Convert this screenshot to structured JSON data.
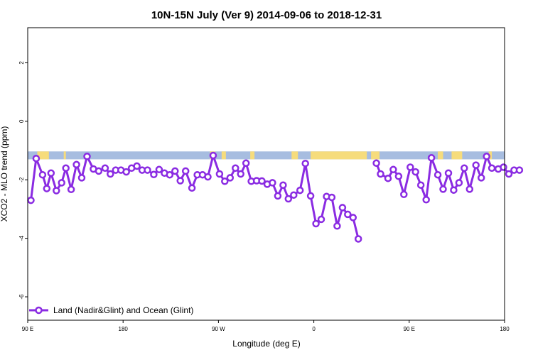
{
  "chart_data": {
    "type": "line",
    "title": "10N-15N July (Ver 9)   2014-09-06 to 2018-12-31",
    "xlabel": "Longitude (deg E)",
    "ylabel": "XCO2 - MLO trend (ppm)",
    "x_ticks": [
      {
        "value": 90,
        "label": "90 E"
      },
      {
        "value": 180,
        "label": "180"
      },
      {
        "value": 270,
        "label": "90 W"
      },
      {
        "value": 360,
        "label": "0"
      },
      {
        "value": 450,
        "label": "90 E"
      },
      {
        "value": 540,
        "label": "180"
      }
    ],
    "y_ticks": [
      {
        "value": 2,
        "label": "2"
      },
      {
        "value": 0,
        "label": "0"
      },
      {
        "value": -2,
        "label": "-2"
      },
      {
        "value": -4,
        "label": "-4"
      },
      {
        "value": -6,
        "label": "-6"
      }
    ],
    "xlim": [
      90,
      540
    ],
    "ylim": [
      -6.8,
      3.2
    ],
    "grid": false,
    "legend_position": "bottom-left",
    "land_band": {
      "y_range": [
        -1.3,
        -1.03
      ],
      "ocean_color": "#a7bde0",
      "land_color": "#f6dc7c",
      "land_segments_x": [
        [
          99,
          110
        ],
        [
          124,
          126
        ],
        [
          262,
          267
        ],
        [
          273,
          277
        ],
        [
          300,
          304
        ],
        [
          339,
          345
        ],
        [
          357,
          410
        ],
        [
          414,
          422
        ],
        [
          477,
          482
        ],
        [
          490,
          500
        ],
        [
          525,
          528
        ]
      ]
    },
    "series": [
      {
        "name": "Land (Nadir&Glint) and Ocean (Glint)",
        "color": "#8a2be2",
        "segments": [
          [
            [
              93,
              -2.7
            ],
            [
              98,
              -1.27
            ],
            [
              104,
              -1.83
            ],
            [
              108,
              -2.3
            ],
            [
              112,
              -1.77
            ],
            [
              117,
              -2.37
            ],
            [
              122,
              -2.1
            ],
            [
              126,
              -1.6
            ],
            [
              131,
              -2.33
            ],
            [
              136,
              -1.48
            ],
            [
              141,
              -1.93
            ],
            [
              146,
              -1.2
            ],
            [
              152,
              -1.63
            ],
            [
              157,
              -1.7
            ],
            [
              163,
              -1.6
            ],
            [
              168,
              -1.8
            ],
            [
              173,
              -1.67
            ],
            [
              178,
              -1.67
            ],
            [
              183,
              -1.73
            ],
            [
              188,
              -1.6
            ],
            [
              193,
              -1.53
            ],
            [
              198,
              -1.67
            ],
            [
              203,
              -1.67
            ],
            [
              209,
              -1.82
            ],
            [
              214,
              -1.65
            ],
            [
              219,
              -1.77
            ],
            [
              224,
              -1.83
            ],
            [
              229,
              -1.7
            ],
            [
              234,
              -2.03
            ],
            [
              239,
              -1.7
            ],
            [
              245,
              -2.28
            ],
            [
              250,
              -1.83
            ],
            [
              255,
              -1.83
            ],
            [
              260,
              -1.9
            ],
            [
              265,
              -1.17
            ],
            [
              271,
              -1.8
            ],
            [
              276,
              -2.05
            ],
            [
              281,
              -1.93
            ],
            [
              286,
              -1.6
            ],
            [
              291,
              -1.8
            ],
            [
              296,
              -1.43
            ],
            [
              301,
              -2.05
            ],
            [
              306,
              -2.03
            ],
            [
              311,
              -2.04
            ],
            [
              316,
              -2.15
            ],
            [
              321,
              -2.1
            ],
            [
              326,
              -2.55
            ],
            [
              331,
              -2.18
            ],
            [
              336,
              -2.65
            ],
            [
              341,
              -2.52
            ],
            [
              347,
              -2.36
            ],
            [
              352,
              -1.44
            ],
            [
              357,
              -2.55
            ],
            [
              362,
              -3.5
            ],
            [
              367,
              -3.35
            ],
            [
              372,
              -2.57
            ],
            [
              377,
              -2.6
            ],
            [
              382,
              -3.58
            ],
            [
              387,
              -2.95
            ],
            [
              392,
              -3.18
            ],
            [
              397,
              -3.29
            ],
            [
              402,
              -4.02
            ]
          ],
          [
            [
              419,
              -1.43
            ],
            [
              423,
              -1.8
            ],
            [
              430,
              -1.95
            ],
            [
              435,
              -1.65
            ],
            [
              440,
              -1.88
            ],
            [
              445,
              -2.5
            ],
            [
              451,
              -1.57
            ],
            [
              456,
              -1.73
            ],
            [
              461,
              -2.18
            ],
            [
              466,
              -2.68
            ],
            [
              471,
              -1.25
            ],
            [
              477,
              -1.83
            ],
            [
              482,
              -2.32
            ],
            [
              487,
              -1.77
            ],
            [
              492,
              -2.35
            ],
            [
              497,
              -2.1
            ],
            [
              502,
              -1.6
            ],
            [
              507,
              -2.32
            ],
            [
              513,
              -1.5
            ],
            [
              518,
              -1.93
            ],
            [
              523,
              -1.2
            ],
            [
              528,
              -1.6
            ],
            [
              534,
              -1.63
            ],
            [
              539,
              -1.57
            ],
            [
              544,
              -1.8
            ],
            [
              549,
              -1.67
            ],
            [
              554,
              -1.67
            ]
          ]
        ]
      }
    ]
  }
}
